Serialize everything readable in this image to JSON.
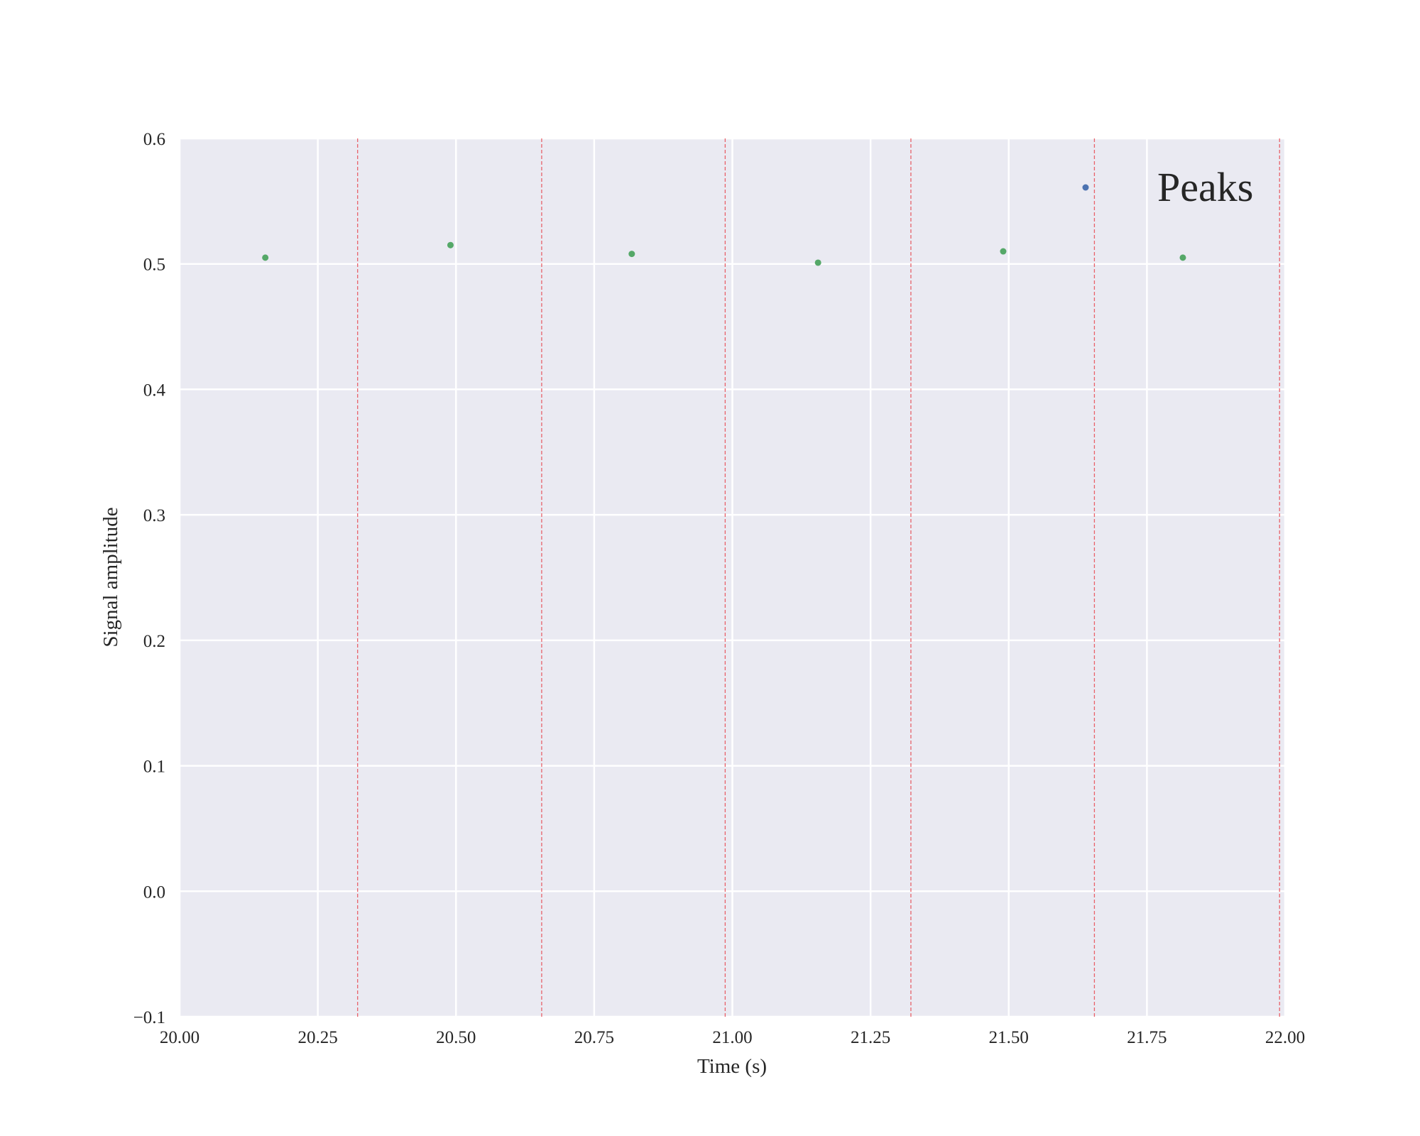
{
  "chart_data": {
    "type": "scatter",
    "title": "",
    "xlabel": "Time (s)",
    "ylabel": "Signal amplitude",
    "xlim": [
      20.0,
      22.0
    ],
    "ylim": [
      -0.1,
      0.6
    ],
    "x_ticks": [
      20.0,
      20.25,
      20.5,
      20.75,
      21.0,
      21.25,
      21.5,
      21.75,
      22.0
    ],
    "x_tick_labels": [
      "20.00",
      "20.25",
      "20.50",
      "20.75",
      "21.00",
      "21.25",
      "21.50",
      "21.75",
      "22.00"
    ],
    "y_ticks": [
      -0.1,
      0.0,
      0.1,
      0.2,
      0.3,
      0.4,
      0.5,
      0.6
    ],
    "y_tick_labels": [
      "−0.1",
      "0.0",
      "0.1",
      "0.2",
      "0.3",
      "0.4",
      "0.5",
      "0.6"
    ],
    "grid": true,
    "series": [
      {
        "name": "Peaks",
        "color": "#4c72b0",
        "points": []
      },
      {
        "color": "#55a868",
        "points": [
          {
            "x": 20.155,
            "y": 0.505
          },
          {
            "x": 20.49,
            "y": 0.515
          },
          {
            "x": 20.818,
            "y": 0.508
          },
          {
            "x": 21.155,
            "y": 0.501
          },
          {
            "x": 21.49,
            "y": 0.51
          },
          {
            "x": 21.815,
            "y": 0.505
          }
        ]
      }
    ],
    "vlines": {
      "color": "#e8626a",
      "style": "dashed",
      "x": [
        20.322,
        20.655,
        20.987,
        21.323,
        21.655,
        21.99
      ]
    },
    "legend": {
      "position": "top-right",
      "entries": [
        {
          "label": "Peaks",
          "color": "#4c72b0"
        }
      ]
    },
    "background_color": "#eaeaf2",
    "grid_color": "#ffffff"
  }
}
